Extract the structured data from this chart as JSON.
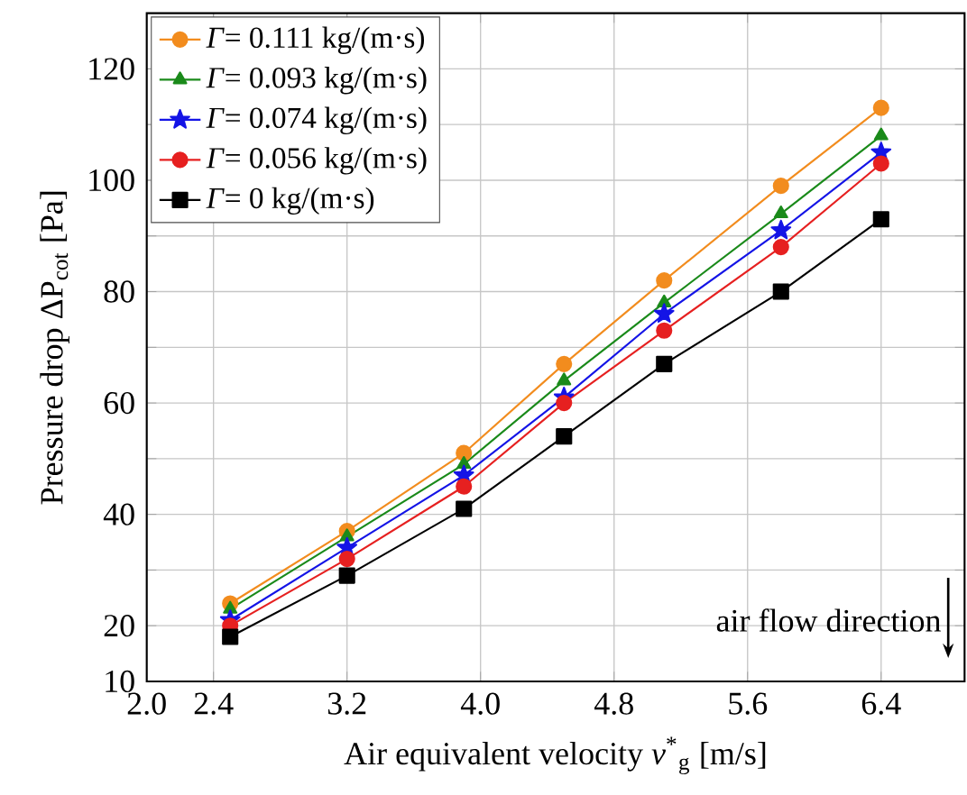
{
  "chart_data": {
    "type": "line",
    "xlabel": "Air equivalent velocity *v*$^{*}$$_{g}$ [m/s]",
    "ylabel": "Pressure drop ΔP$_{cot}$ [Pa]",
    "x": [
      2.5,
      3.2,
      3.9,
      4.5,
      5.1,
      5.8,
      6.4
    ],
    "series": [
      {
        "name": "*Γ*= 0.111 kg/(m·s)",
        "color": "#f28c1e",
        "marker": "circle",
        "values": [
          24,
          37,
          51,
          67,
          82,
          99,
          113
        ]
      },
      {
        "name": "*Γ*= 0.093 kg/(m·s)",
        "color": "#1a8a1a",
        "marker": "triangle",
        "values": [
          23,
          36,
          49,
          64,
          78,
          94,
          108
        ]
      },
      {
        "name": "*Γ*= 0.074 kg/(m·s)",
        "color": "#1414e6",
        "marker": "star",
        "values": [
          21,
          34,
          47,
          61,
          76,
          91,
          105
        ]
      },
      {
        "name": "*Γ*= 0.056 kg/(m·s)",
        "color": "#e62020",
        "marker": "circle",
        "values": [
          20,
          32,
          45,
          60,
          73,
          88,
          103
        ]
      },
      {
        "name": "*Γ*= 0 kg/(m·s)",
        "color": "#000000",
        "marker": "square",
        "values": [
          18,
          29,
          41,
          54,
          67,
          80,
          93
        ]
      }
    ],
    "xlim": [
      2.0,
      6.9
    ],
    "ylim": [
      10,
      130
    ],
    "xticks": [
      {
        "value": 2,
        "label": "2.0"
      },
      2.4,
      3.2,
      {
        "value": 4,
        "label": "4.0"
      },
      4.8,
      5.6,
      6.4
    ],
    "yticks": [
      10,
      20,
      {
        "value": 30,
        "label": null
      },
      40,
      {
        "value": 50,
        "label": null
      },
      60,
      {
        "value": 70,
        "label": null
      },
      80,
      {
        "value": 90,
        "label": null
      },
      100,
      {
        "value": 110,
        "label": null
      },
      120
    ],
    "grid": true,
    "legend": "top left",
    "line_style": "solid",
    "annotations": [
      "air flow direction"
    ]
  }
}
